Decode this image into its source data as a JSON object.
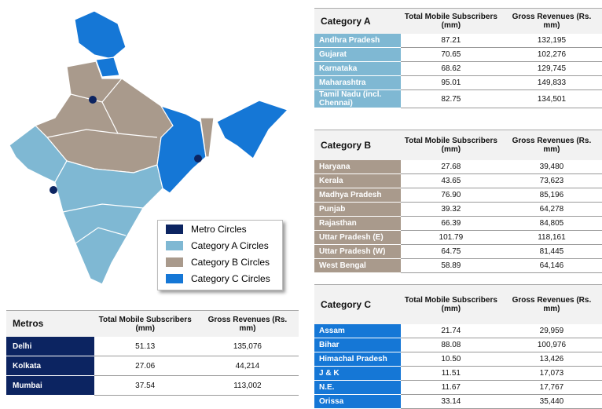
{
  "map_legend": [
    {
      "label": "Metro Circles",
      "color": "#0c2461"
    },
    {
      "label": "Category A Circles",
      "color": "#7fb8d3"
    },
    {
      "label": "Category B Circles",
      "color": "#a99a8c"
    },
    {
      "label": "Category C Circles",
      "color": "#1577d6"
    }
  ],
  "tables": [
    {
      "title": "Category A",
      "color": "#7fb8d3",
      "headers": [
        "Total Mobile Subscribers (mm)",
        "Gross Revenues (Rs. mm)"
      ],
      "rows": [
        [
          "Andhra Pradesh",
          "87.21",
          "132,195"
        ],
        [
          "Gujarat",
          "70.65",
          "102,276"
        ],
        [
          "Karnataka",
          "68.62",
          "129,745"
        ],
        [
          "Maharashtra",
          "95.01",
          "149,833"
        ],
        [
          "Tamil Nadu (incl. Chennai)",
          "82.75",
          "134,501"
        ]
      ]
    },
    {
      "title": "Category B",
      "color": "#a99a8c",
      "headers": [
        "Total Mobile Subscribers (mm)",
        "Gross Revenues (Rs. mm)"
      ],
      "rows": [
        [
          "Haryana",
          "27.68",
          "39,480"
        ],
        [
          "Kerala",
          "43.65",
          "73,623"
        ],
        [
          "Madhya Pradesh",
          "76.90",
          "85,196"
        ],
        [
          "Punjab",
          "39.32",
          "64,278"
        ],
        [
          "Rajasthan",
          "66.39",
          "84,805"
        ],
        [
          "Uttar Pradesh (E)",
          "101.79",
          "118,161"
        ],
        [
          "Uttar Pradesh (W)",
          "64.75",
          "81,445"
        ],
        [
          "West Bengal",
          "58.89",
          "64,146"
        ]
      ]
    },
    {
      "title": "Category C",
      "color": "#1577d6",
      "headers": [
        "Total Mobile Subscribers (mm)",
        "Gross Revenues (Rs. mm)"
      ],
      "rows": [
        [
          "Assam",
          "21.74",
          "29,959"
        ],
        [
          "Bihar",
          "88.08",
          "100,976"
        ],
        [
          "Himachal Pradesh",
          "10.50",
          "13,426"
        ],
        [
          "J & K",
          "11.51",
          "17,073"
        ],
        [
          "N.E.",
          "11.67",
          "17,767"
        ],
        [
          "Orissa",
          "33.14",
          "35,440"
        ]
      ]
    },
    {
      "title": "Metros",
      "color": "#0c2461",
      "headers": [
        "Total Mobile Subscribers (mm)",
        "Gross Revenues (Rs. mm)"
      ],
      "rows": [
        [
          "Delhi",
          "51.13",
          "135,076"
        ],
        [
          "Kolkata",
          "27.06",
          "44,214"
        ],
        [
          "Mumbai",
          "37.54",
          "113,002"
        ]
      ]
    }
  ]
}
